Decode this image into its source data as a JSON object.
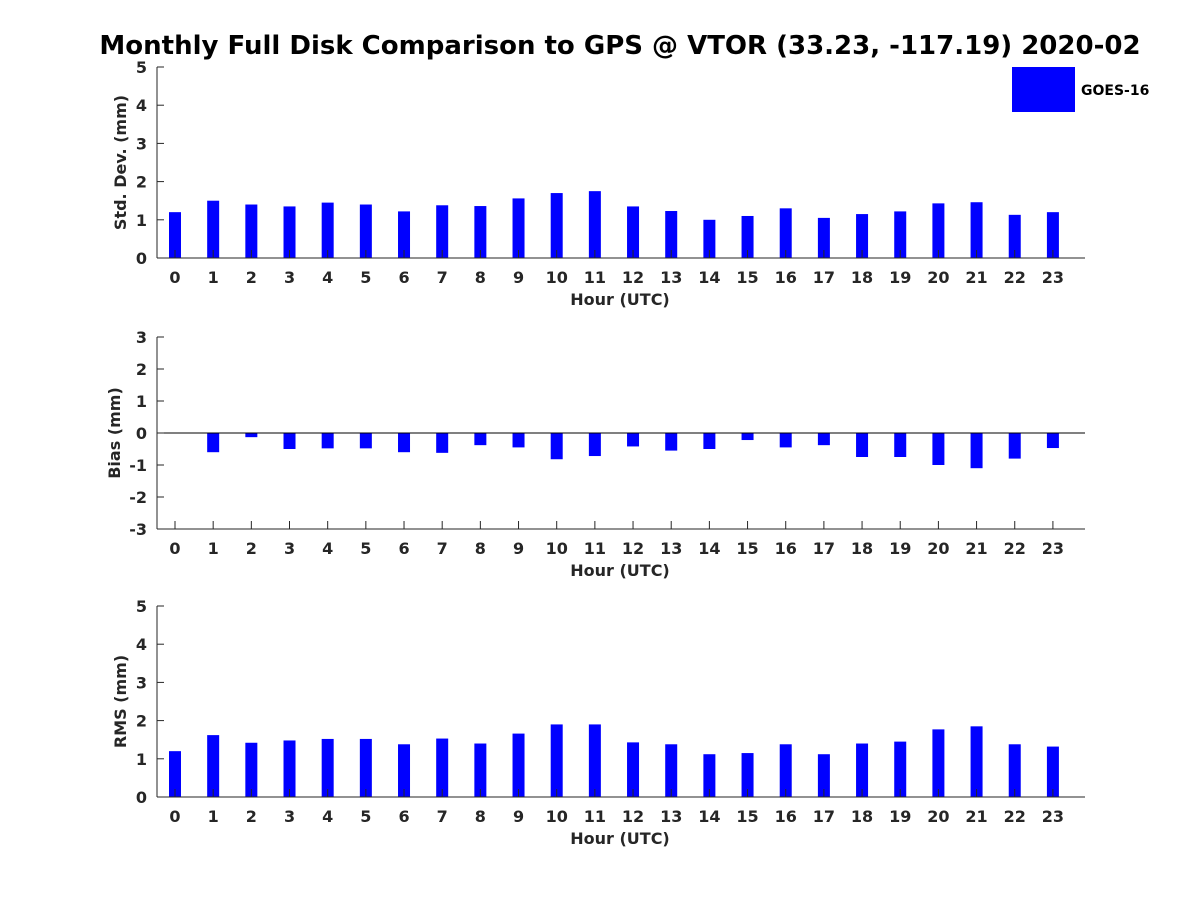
{
  "title": "Monthly Full Disk Comparison to GPS @ VTOR (33.23, -117.19) 2020-02",
  "legend": {
    "label": "GOES-16",
    "color": "#0000ff"
  },
  "chart_data": [
    {
      "type": "bar",
      "categories": [
        "0",
        "1",
        "2",
        "3",
        "4",
        "5",
        "6",
        "7",
        "8",
        "9",
        "10",
        "11",
        "12",
        "13",
        "14",
        "15",
        "16",
        "17",
        "18",
        "19",
        "20",
        "21",
        "22",
        "23"
      ],
      "series": [
        {
          "name": "GOES-16",
          "values": [
            1.2,
            1.5,
            1.4,
            1.35,
            1.45,
            1.4,
            1.22,
            1.38,
            1.36,
            1.56,
            1.7,
            1.75,
            1.35,
            1.23,
            1.0,
            1.1,
            1.3,
            1.05,
            1.15,
            1.22,
            1.43,
            1.46,
            1.13,
            1.2
          ]
        }
      ],
      "xlabel": "Hour (UTC)",
      "ylabel": "Std. Dev. (mm)",
      "ylim": [
        0,
        5
      ],
      "yticks": [
        "0",
        "1",
        "2",
        "3",
        "4",
        "5"
      ],
      "grid": false,
      "legend_position": "top-right"
    },
    {
      "type": "bar",
      "categories": [
        "0",
        "1",
        "2",
        "3",
        "4",
        "5",
        "6",
        "7",
        "8",
        "9",
        "10",
        "11",
        "12",
        "13",
        "14",
        "15",
        "16",
        "17",
        "18",
        "19",
        "20",
        "21",
        "22",
        "23"
      ],
      "series": [
        {
          "name": "GOES-16",
          "values": [
            0.0,
            -0.6,
            -0.13,
            -0.5,
            -0.48,
            -0.48,
            -0.6,
            -0.62,
            -0.38,
            -0.45,
            -0.82,
            -0.72,
            -0.42,
            -0.55,
            -0.5,
            -0.22,
            -0.45,
            -0.38,
            -0.75,
            -0.75,
            -1.0,
            -1.1,
            -0.8,
            -0.47
          ]
        }
      ],
      "xlabel": "Hour (UTC)",
      "ylabel": "Bias (mm)",
      "ylim": [
        -3,
        3
      ],
      "yticks": [
        "-3",
        "-2",
        "-1",
        "0",
        "1",
        "2",
        "3"
      ],
      "grid": false
    },
    {
      "type": "bar",
      "categories": [
        "0",
        "1",
        "2",
        "3",
        "4",
        "5",
        "6",
        "7",
        "8",
        "9",
        "10",
        "11",
        "12",
        "13",
        "14",
        "15",
        "16",
        "17",
        "18",
        "19",
        "20",
        "21",
        "22",
        "23"
      ],
      "series": [
        {
          "name": "GOES-16",
          "values": [
            1.2,
            1.62,
            1.42,
            1.48,
            1.52,
            1.52,
            1.38,
            1.53,
            1.4,
            1.66,
            1.9,
            1.9,
            1.43,
            1.38,
            1.12,
            1.15,
            1.38,
            1.12,
            1.4,
            1.45,
            1.77,
            1.85,
            1.38,
            1.32
          ]
        }
      ],
      "xlabel": "Hour (UTC)",
      "ylabel": "RMS (mm)",
      "ylim": [
        0,
        5
      ],
      "yticks": [
        "0",
        "1",
        "2",
        "3",
        "4",
        "5"
      ],
      "grid": false
    }
  ]
}
